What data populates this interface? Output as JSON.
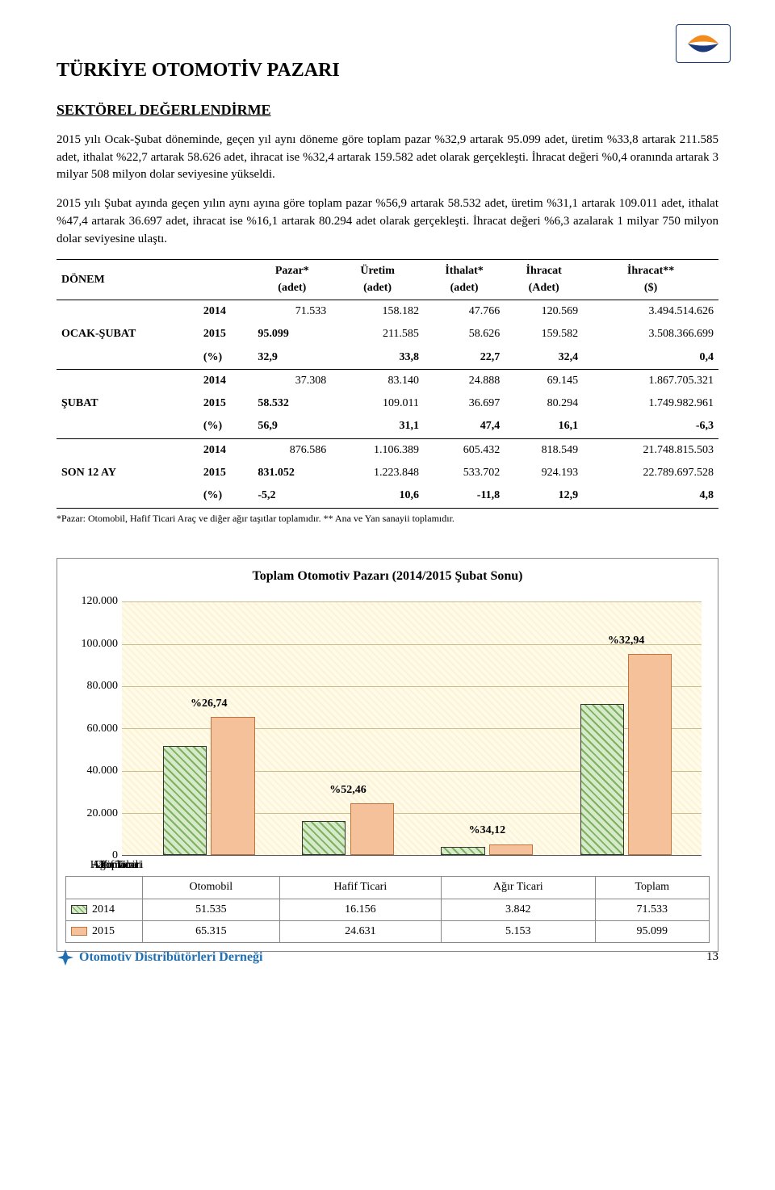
{
  "page": {
    "number": "13"
  },
  "logo": {
    "footer_text": "Otomotiv Distribütörleri Derneği"
  },
  "title": "TÜRKİYE OTOMOTİV PAZARI",
  "subtitle": "SEKTÖREL DEĞERLENDİRME",
  "paragraphs": [
    "2015 yılı Ocak-Şubat döneminde, geçen yıl aynı döneme göre toplam pazar %32,9 artarak 95.099 adet, üretim %33,8 artarak 211.585 adet, ithalat %22,7 artarak 58.626 adet, ihracat ise %32,4 artarak 159.582 adet olarak gerçekleşti. İhracat değeri %0,4 oranında artarak 3 milyar 508 milyon dolar seviyesine yükseldi.",
    "2015 yılı Şubat ayında geçen yılın aynı ayına göre toplam pazar %56,9 artarak 58.532 adet, üretim %31,1 artarak 109.011 adet, ithalat %47,4 artarak 36.697 adet, ihracat ise %16,1 artarak 80.294 adet olarak gerçekleşti. İhracat değeri %6,3 azalarak 1 milyar 750 milyon dolar seviyesine ulaştı."
  ],
  "table": {
    "columns": [
      {
        "line1": "DÖNEM",
        "line2": ""
      },
      {
        "line1": "Pazar*",
        "line2": "(adet)"
      },
      {
        "line1": "Üretim",
        "line2": "(adet)"
      },
      {
        "line1": "İthalat*",
        "line2": "(adet)"
      },
      {
        "line1": "İhracat",
        "line2": "(Adet)"
      },
      {
        "line1": "İhracat**",
        "line2": "($)"
      }
    ],
    "groups": [
      {
        "label": "OCAK-ŞUBAT",
        "rows": [
          {
            "year": "2014",
            "cells": [
              "71.533",
              "158.182",
              "47.766",
              "120.569",
              "3.494.514.626"
            ]
          },
          {
            "year": "2015",
            "cells": [
              "95.099",
              "211.585",
              "58.626",
              "159.582",
              "3.508.366.699"
            ]
          },
          {
            "year": "(%)",
            "cells": [
              "32,9",
              "33,8",
              "22,7",
              "32,4",
              "0,4"
            ],
            "pct": true
          }
        ]
      },
      {
        "label": "ŞUBAT",
        "rows": [
          {
            "year": "2014",
            "cells": [
              "37.308",
              "83.140",
              "24.888",
              "69.145",
              "1.867.705.321"
            ]
          },
          {
            "year": "2015",
            "cells": [
              "58.532",
              "109.011",
              "36.697",
              "80.294",
              "1.749.982.961"
            ]
          },
          {
            "year": "(%)",
            "cells": [
              "56,9",
              "31,1",
              "47,4",
              "16,1",
              "-6,3"
            ],
            "pct": true
          }
        ]
      },
      {
        "label": "SON 12 AY",
        "rows": [
          {
            "year": "2014",
            "cells": [
              "876.586",
              "1.106.389",
              "605.432",
              "818.549",
              "21.748.815.503"
            ]
          },
          {
            "year": "2015",
            "cells": [
              "831.052",
              "1.223.848",
              "533.702",
              "924.193",
              "22.789.697.528"
            ]
          },
          {
            "year": "(%)",
            "cells": [
              "-5,2",
              "10,6",
              "-11,8",
              "12,9",
              "4,8"
            ],
            "pct": true
          }
        ]
      }
    ],
    "footnote": "*Pazar: Otomobil, Hafif Ticari Araç ve diğer ağır taşıtlar toplamıdır. ** Ana ve Yan sanayii toplamıdır."
  },
  "chart": {
    "type": "bar",
    "title": "Toplam Otomotiv Pazarı (2014/2015 Şubat Sonu)",
    "ylim": [
      0,
      120000
    ],
    "ytick_step": 20000,
    "ytick_labels": [
      "0",
      "20.000",
      "40.000",
      "60.000",
      "80.000",
      "100.000",
      "120.000"
    ],
    "categories": [
      "Otomobil",
      "Hafif Ticari",
      "Ağır Ticari",
      "Toplam"
    ],
    "series": [
      {
        "name": "2014",
        "color_fill": "#d5eac9",
        "color_hatch": "#7fb060",
        "pattern": "diagonal-hatch",
        "values": [
          51535,
          16156,
          3842,
          71533
        ],
        "value_labels": [
          "51.535",
          "16.156",
          "3.842",
          "71.533"
        ]
      },
      {
        "name": "2015",
        "color_fill": "#f5c19a",
        "color_border": "#c0733b",
        "pattern": "solid",
        "values": [
          65315,
          24631,
          5153,
          95099
        ],
        "value_labels": [
          "65.315",
          "24.631",
          "5.153",
          "95.099"
        ]
      }
    ],
    "group_pct_labels": [
      "%26,74",
      "%52,46",
      "%34,12",
      "%32,94"
    ],
    "plot_bg": "#fffbe9",
    "grid_color": "#c9bc8f",
    "font_size": 14
  }
}
